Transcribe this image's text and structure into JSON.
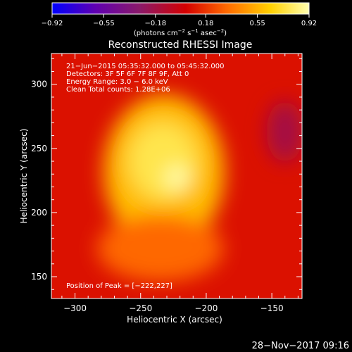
{
  "chart_data": {
    "type": "heatmap",
    "title": "Reconstructed RHESSI Image",
    "xlabel": "Heliocentric X (arcsec)",
    "ylabel": "Heliocentric Y (arcsec)",
    "xlim": [
      -318,
      -127
    ],
    "ylim": [
      133,
      324
    ],
    "x_ticks": [
      -300,
      -250,
      -200,
      -150
    ],
    "y_ticks": [
      150,
      200,
      250,
      300
    ],
    "x_tick_labels": [
      "−300",
      "−250",
      "−200",
      "−150"
    ],
    "y_tick_labels": [
      "150",
      "200",
      "250",
      "300"
    ],
    "colorbar": {
      "range": [
        -0.92,
        0.92
      ],
      "tick_values": [
        -0.92,
        -0.55,
        -0.18,
        0.18,
        0.55,
        0.92
      ],
      "tick_labels": [
        "−0.92",
        "−0.55",
        "−0.18",
        "0.18",
        "0.55",
        "0.92"
      ],
      "unit_parts": [
        "(photons cm",
        "−2",
        " s",
        "−1",
        " asec",
        "−2",
        ")"
      ],
      "colors": [
        "#0000ff",
        "#6000b0",
        "#8a1a6a",
        "#d40000",
        "#ff6a00",
        "#ffd000",
        "#ffffb0"
      ]
    },
    "annotations": [
      "21−Jun−2015 05:35:32.000 to 05:45:32.000",
      "Detectors: 3F 5F 6F 7F 8F 9F, Att 0",
      "Energy Range: 3.0 − 6.0 keV",
      "Clean     Total counts: 1.28E+06"
    ],
    "peak_label": "Position of Peak = [−222,227]",
    "peak": {
      "x": -222,
      "y": 227,
      "value": 0.92
    },
    "regions": [
      {
        "cx": -232,
        "cy": 232,
        "rx": 46,
        "ry": 60,
        "level": 0.55
      },
      {
        "cx": -233,
        "cy": 240,
        "rx": 26,
        "ry": 30,
        "level": 0.75
      },
      {
        "cx": -222,
        "cy": 227,
        "rx": 9,
        "ry": 9,
        "level": 0.92
      },
      {
        "cx": -235,
        "cy": 172,
        "rx": 48,
        "ry": 26,
        "level": 0.3
      },
      {
        "cx": -140,
        "cy": 263,
        "rx": 14,
        "ry": 24,
        "level": -0.2
      }
    ],
    "background_level": 0.05,
    "grid": false
  },
  "footer": {
    "timestamp": "28−Nov−2017 09:16"
  }
}
